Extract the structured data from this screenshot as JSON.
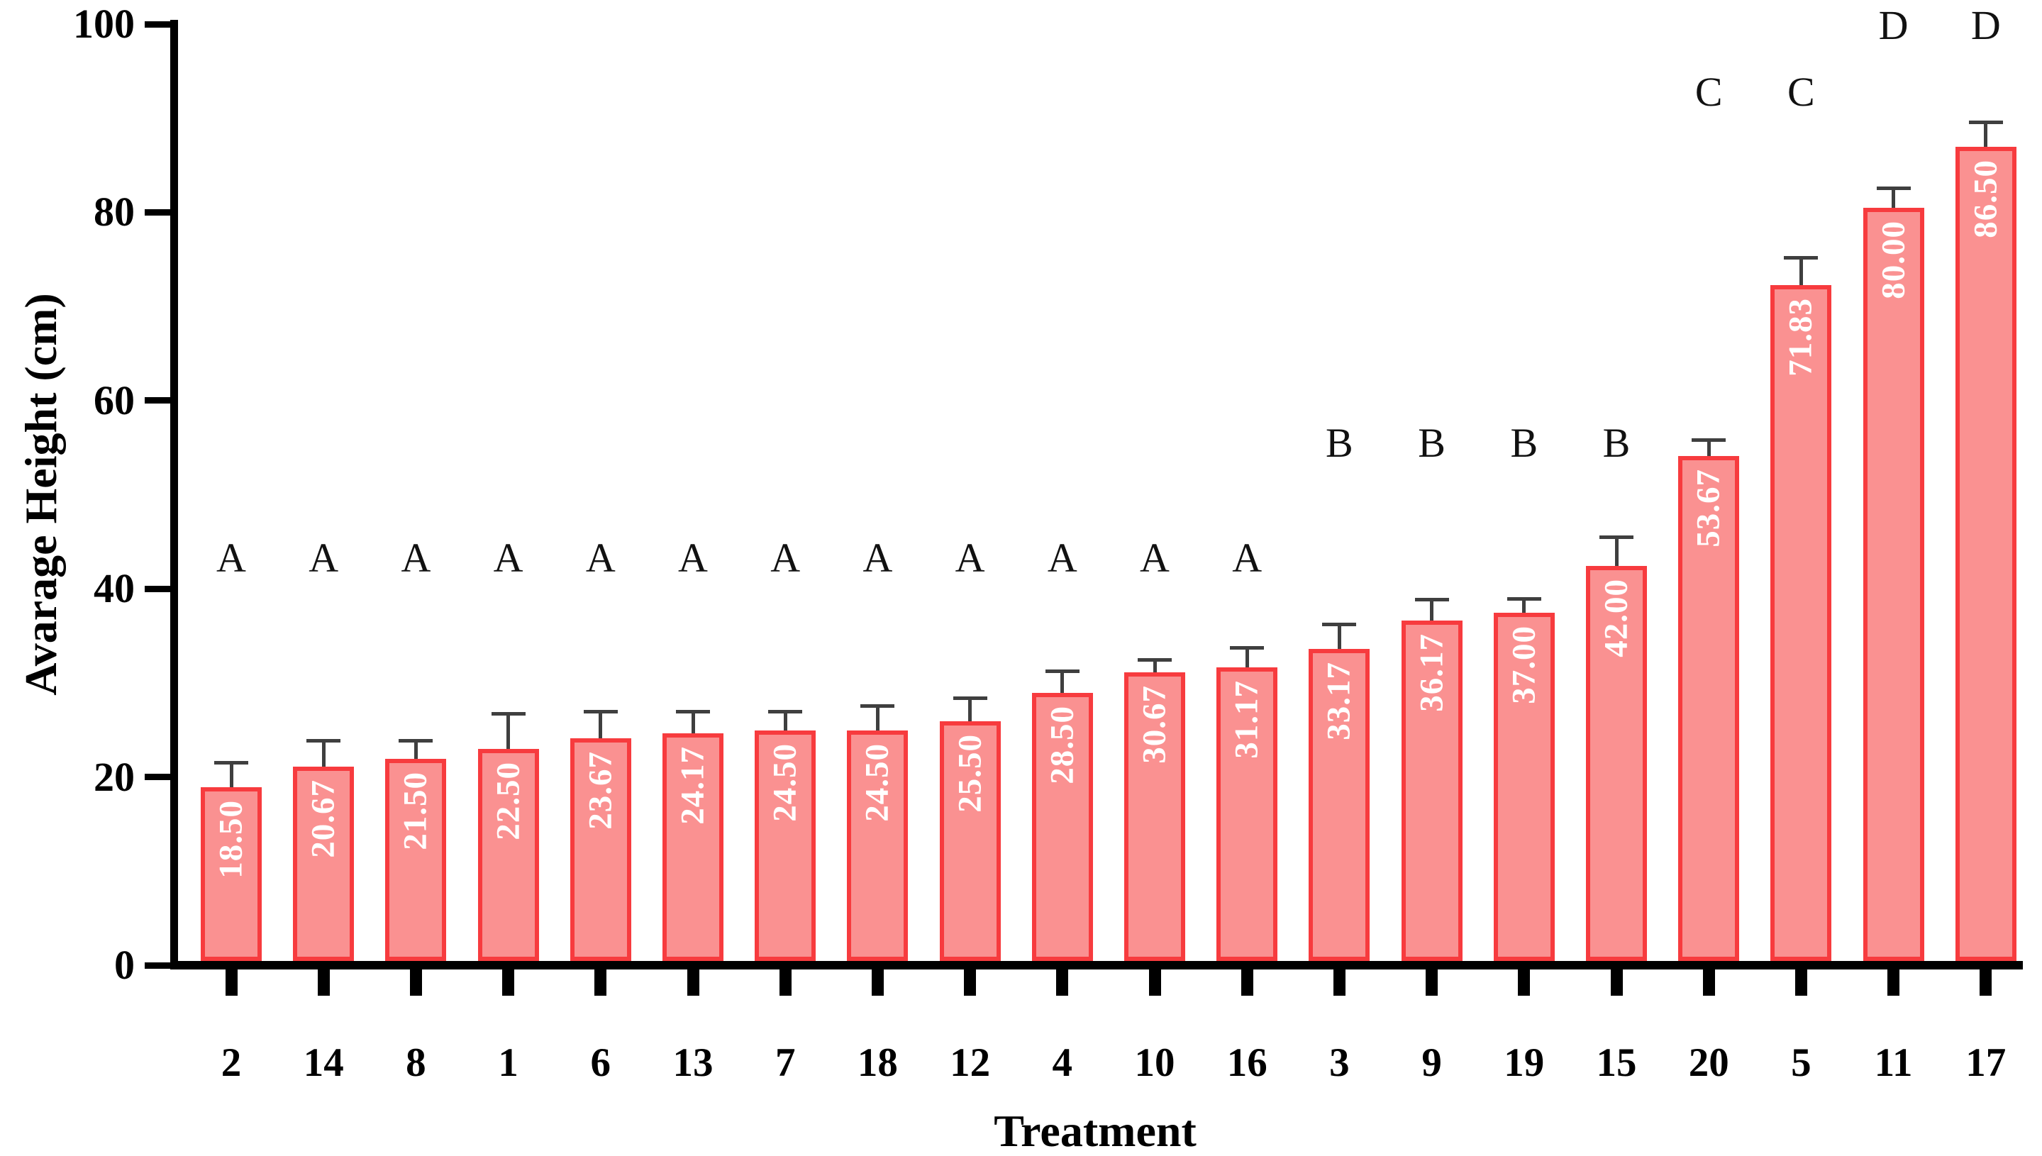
{
  "chart_data": {
    "type": "bar",
    "title": "",
    "xlabel": "Treatment",
    "ylabel": "Avarage Height (cm)",
    "ylim": [
      0,
      100
    ],
    "yticks": [
      0,
      20,
      40,
      60,
      80,
      100
    ],
    "grid": false,
    "legend": "none",
    "categories": [
      "2",
      "14",
      "8",
      "1",
      "6",
      "13",
      "7",
      "18",
      "12",
      "4",
      "10",
      "16",
      "3",
      "9",
      "19",
      "15",
      "20",
      "5",
      "11",
      "17"
    ],
    "values": [
      18.5,
      20.67,
      21.5,
      22.5,
      23.67,
      24.17,
      24.5,
      24.5,
      25.5,
      28.5,
      30.67,
      31.17,
      33.17,
      36.17,
      37.0,
      42.0,
      53.67,
      71.83,
      80.0,
      86.5
    ],
    "value_labels": [
      "18.50",
      "20.67",
      "21.50",
      "22.50",
      "23.67",
      "24.17",
      "24.50",
      "24.50",
      "25.50",
      "28.50",
      "30.67",
      "31.17",
      "33.17",
      "36.17",
      "37.00",
      "42.00",
      "53.67",
      "71.83",
      "80.00",
      "86.50"
    ],
    "errors_upper": [
      2.6,
      2.7,
      1.9,
      3.8,
      2.8,
      2.3,
      2.0,
      2.6,
      2.4,
      2.3,
      1.3,
      2.1,
      2.6,
      2.2,
      1.5,
      3.0,
      1.7,
      2.9,
      2.1,
      2.6
    ],
    "significance_letters": [
      "A",
      "A",
      "A",
      "A",
      "A",
      "A",
      "A",
      "A",
      "A",
      "A",
      "A",
      "A",
      "B",
      "B",
      "B",
      "B",
      "C",
      "C",
      "D",
      "D"
    ],
    "letter_row_values": {
      "A": 43.2,
      "B": 55.4,
      "C": 92.7,
      "D": 99.8
    },
    "colors": {
      "bar_fill": "#FA9191",
      "bar_border": "#F73B3E",
      "error_bar": "#3F3F3F",
      "axis": "#000000",
      "value_text": "#FFFFFF",
      "letter_text": "#111111"
    }
  }
}
